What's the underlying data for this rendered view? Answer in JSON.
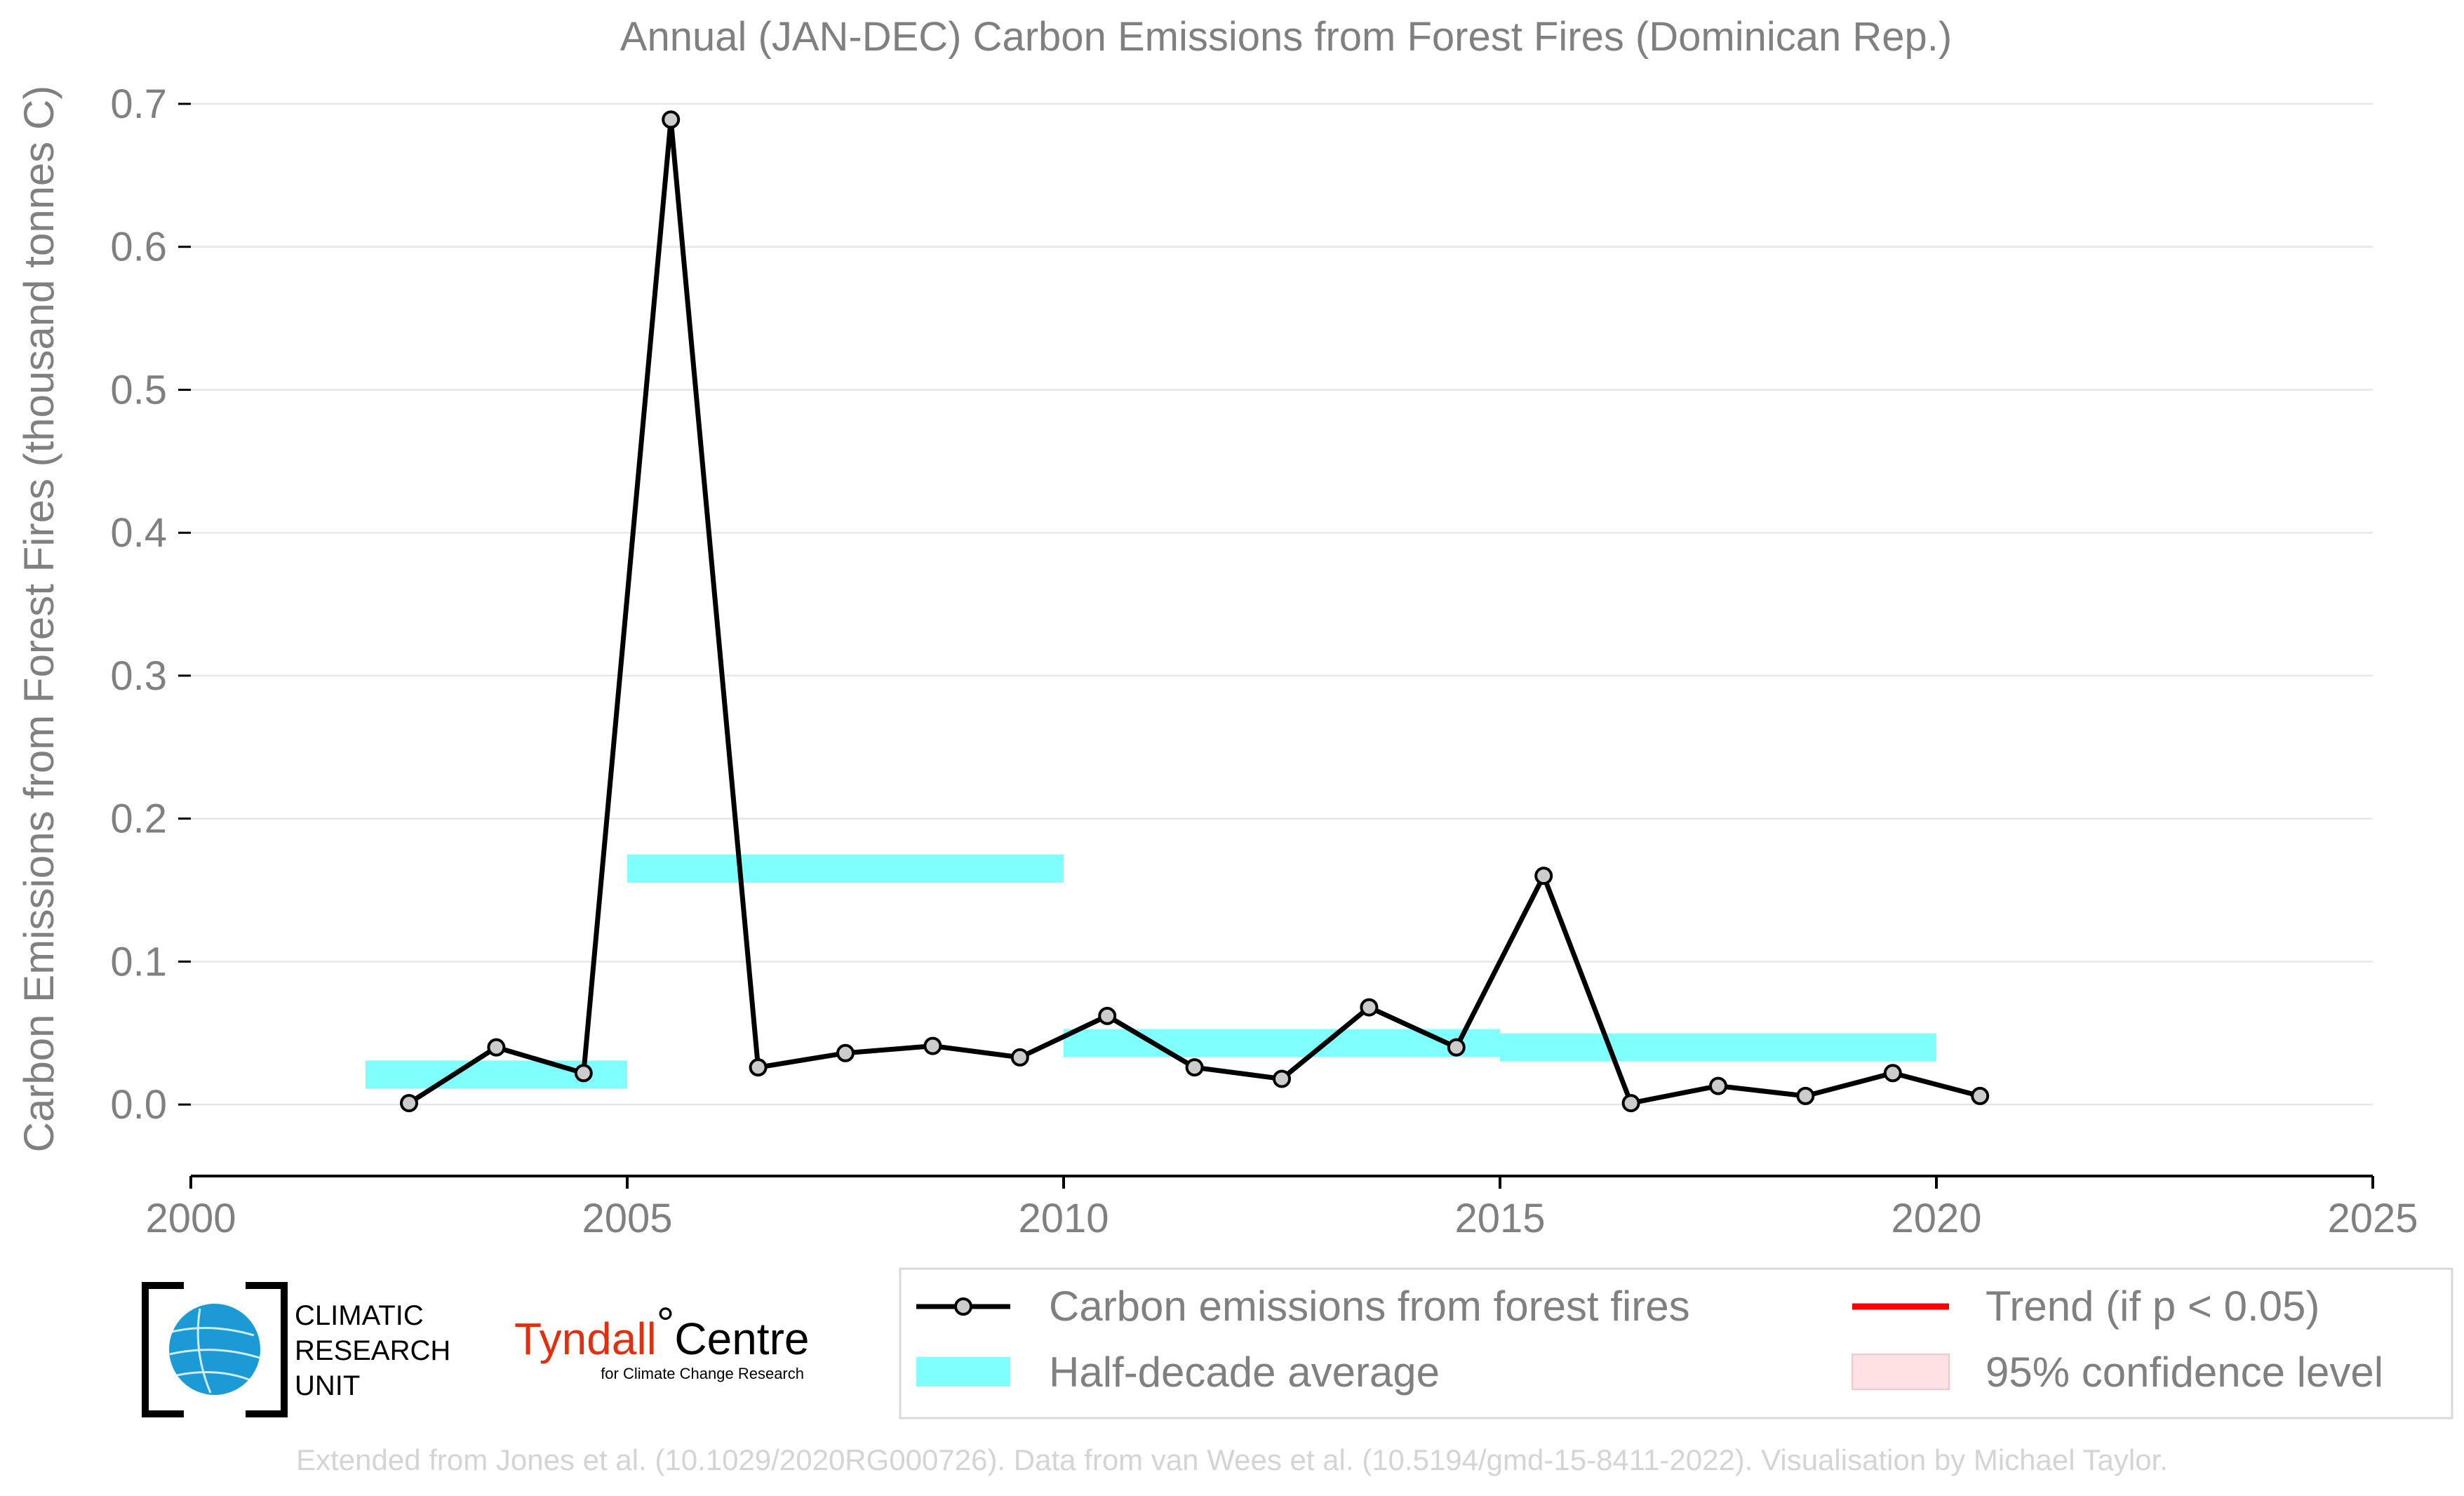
{
  "chart_data": {
    "type": "line",
    "title": "Annual (JAN-DEC) Carbon Emissions from Forest Fires (Dominican Rep.)",
    "xlabel": "",
    "ylabel": "Carbon Emissions from Forest Fires (thousand tonnes C)",
    "xlim": [
      2000,
      2025
    ],
    "ylim": [
      -0.05,
      0.7
    ],
    "x_ticks": [
      "2000",
      "2005",
      "2010",
      "2015",
      "2020",
      "2025"
    ],
    "y_ticks": [
      "0.0",
      "0.1",
      "0.2",
      "0.3",
      "0.4",
      "0.5",
      "0.6",
      "0.7"
    ],
    "grid": true,
    "legend_placement": "bottom",
    "series": [
      {
        "name": "Carbon emissions from forest fires",
        "x": [
          2002.5,
          2003.5,
          2004.5,
          2005.5,
          2006.5,
          2007.5,
          2008.5,
          2009.5,
          2010.5,
          2011.5,
          2012.5,
          2013.5,
          2014.5,
          2015.5,
          2016.5,
          2017.5,
          2018.5,
          2019.5,
          2020.5
        ],
        "values": [
          0.001,
          0.04,
          0.022,
          0.689,
          0.026,
          0.036,
          0.041,
          0.033,
          0.062,
          0.026,
          0.018,
          0.068,
          0.04,
          0.16,
          0.001,
          0.013,
          0.006,
          0.022,
          0.006
        ],
        "color": "#000000"
      }
    ],
    "half_decade_averages": [
      {
        "start": 2002,
        "end": 2005,
        "value": 0.021
      },
      {
        "start": 2005,
        "end": 2010,
        "value": 0.165
      },
      {
        "start": 2010,
        "end": 2015,
        "value": 0.043
      },
      {
        "start": 2015,
        "end": 2020,
        "value": 0.04
      }
    ],
    "legend": [
      {
        "label": "Carbon emissions from forest fires",
        "color": "#000000"
      },
      {
        "label": "Trend (if p < 0.05)",
        "color": "#ff0000"
      },
      {
        "label": "Half-decade average",
        "color": "#80ffff"
      },
      {
        "label": "95% confidence level",
        "color": "#ffe0e3"
      }
    ],
    "colors": {
      "line": "#000000",
      "marker": "#cccccc",
      "average": "#80ffff",
      "trend": "#ff0000",
      "confidence": "#ffe0e3",
      "text": "#808080"
    }
  },
  "logos": {
    "cru": [
      "CLIMATIC",
      "RESEARCH",
      "UNIT"
    ],
    "tyndall_main": "Tyndall",
    "tyndall_centre": "Centre",
    "tyndall_sub": "for Climate Change Research"
  },
  "credit": "Extended from Jones et al. (10.1029/2020RG000726). Data from van Wees et al. (10.5194/gmd-15-8411-2022). Visualisation by Michael Taylor."
}
